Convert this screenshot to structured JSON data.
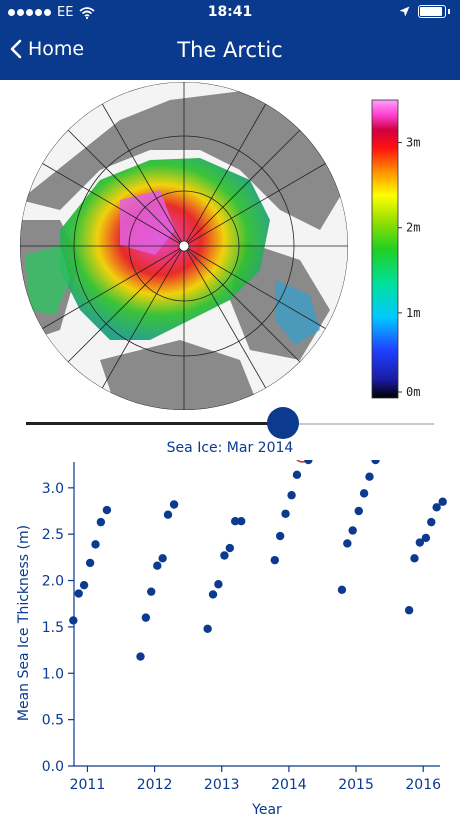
{
  "status_bar": {
    "carrier": "EE",
    "time": "18:41",
    "icons": [
      "signal-dots-icon",
      "wifi-icon",
      "location-arrow-icon",
      "battery-icon"
    ]
  },
  "nav": {
    "back_label": "Home",
    "back_icon": "chevron-left-icon",
    "title": "The Arctic"
  },
  "map": {
    "colorbar_labels": [
      "3m",
      "2m",
      "1m",
      "0m"
    ],
    "colorbar_values": [
      3,
      2,
      1,
      0
    ],
    "colorbar_max": 3.5
  },
  "slider": {
    "caption": "Sea Ice: Mar 2014",
    "position_fraction": 0.63
  },
  "colors": {
    "brand_blue": "#0a3a8e",
    "point_color": "#0b3a8e",
    "highlight_ring": "#c83232"
  },
  "chart_data": {
    "type": "scatter",
    "xlabel": "Year",
    "ylabel": "Mean Sea Ice Thickness (m)",
    "xlim": [
      2010.8,
      2016.25
    ],
    "ylim": [
      0,
      3.3
    ],
    "x_ticks": [
      2011,
      2012,
      2013,
      2014,
      2015,
      2016
    ],
    "y_ticks": [
      0.0,
      0.5,
      1.0,
      1.5,
      2.0,
      2.5,
      3.0
    ],
    "y_tick_labels": [
      "0.0",
      "0.5",
      "1.0",
      "1.5",
      "2.0",
      "2.5",
      "3.0"
    ],
    "x_tick_labels": [
      "2011",
      "2012",
      "2013",
      "2014",
      "2015",
      "2016"
    ],
    "points": [
      {
        "x": 2010.79,
        "y": 1.57
      },
      {
        "x": 2010.87,
        "y": 1.86
      },
      {
        "x": 2010.95,
        "y": 1.95
      },
      {
        "x": 2011.04,
        "y": 2.19
      },
      {
        "x": 2011.12,
        "y": 2.39
      },
      {
        "x": 2011.2,
        "y": 2.63
      },
      {
        "x": 2011.29,
        "y": 2.76
      },
      {
        "x": 2011.79,
        "y": 1.18
      },
      {
        "x": 2011.87,
        "y": 1.6
      },
      {
        "x": 2011.95,
        "y": 1.88
      },
      {
        "x": 2012.04,
        "y": 2.16
      },
      {
        "x": 2012.12,
        "y": 2.24
      },
      {
        "x": 2012.2,
        "y": 2.71
      },
      {
        "x": 2012.29,
        "y": 2.82
      },
      {
        "x": 2012.79,
        "y": 1.48
      },
      {
        "x": 2012.87,
        "y": 1.85
      },
      {
        "x": 2012.95,
        "y": 1.96
      },
      {
        "x": 2013.04,
        "y": 2.27
      },
      {
        "x": 2013.12,
        "y": 2.35
      },
      {
        "x": 2013.2,
        "y": 2.64
      },
      {
        "x": 2013.29,
        "y": 2.64
      },
      {
        "x": 2013.79,
        "y": 2.22
      },
      {
        "x": 2013.87,
        "y": 2.48
      },
      {
        "x": 2013.95,
        "y": 2.72
      },
      {
        "x": 2014.04,
        "y": 2.92
      },
      {
        "x": 2014.12,
        "y": 3.14
      },
      {
        "x": 2014.2,
        "y": 3.36
      },
      {
        "x": 2014.29,
        "y": 3.3
      },
      {
        "x": 2014.79,
        "y": 1.9
      },
      {
        "x": 2014.87,
        "y": 2.4
      },
      {
        "x": 2014.95,
        "y": 2.54
      },
      {
        "x": 2015.04,
        "y": 2.75
      },
      {
        "x": 2015.12,
        "y": 2.94
      },
      {
        "x": 2015.2,
        "y": 3.12
      },
      {
        "x": 2015.29,
        "y": 3.3
      },
      {
        "x": 2015.79,
        "y": 1.68
      },
      {
        "x": 2015.87,
        "y": 2.24
      },
      {
        "x": 2015.95,
        "y": 2.41
      },
      {
        "x": 2016.04,
        "y": 2.46
      },
      {
        "x": 2016.12,
        "y": 2.63
      },
      {
        "x": 2016.2,
        "y": 2.79
      },
      {
        "x": 2016.29,
        "y": 2.85
      }
    ],
    "highlight_index": 26
  }
}
